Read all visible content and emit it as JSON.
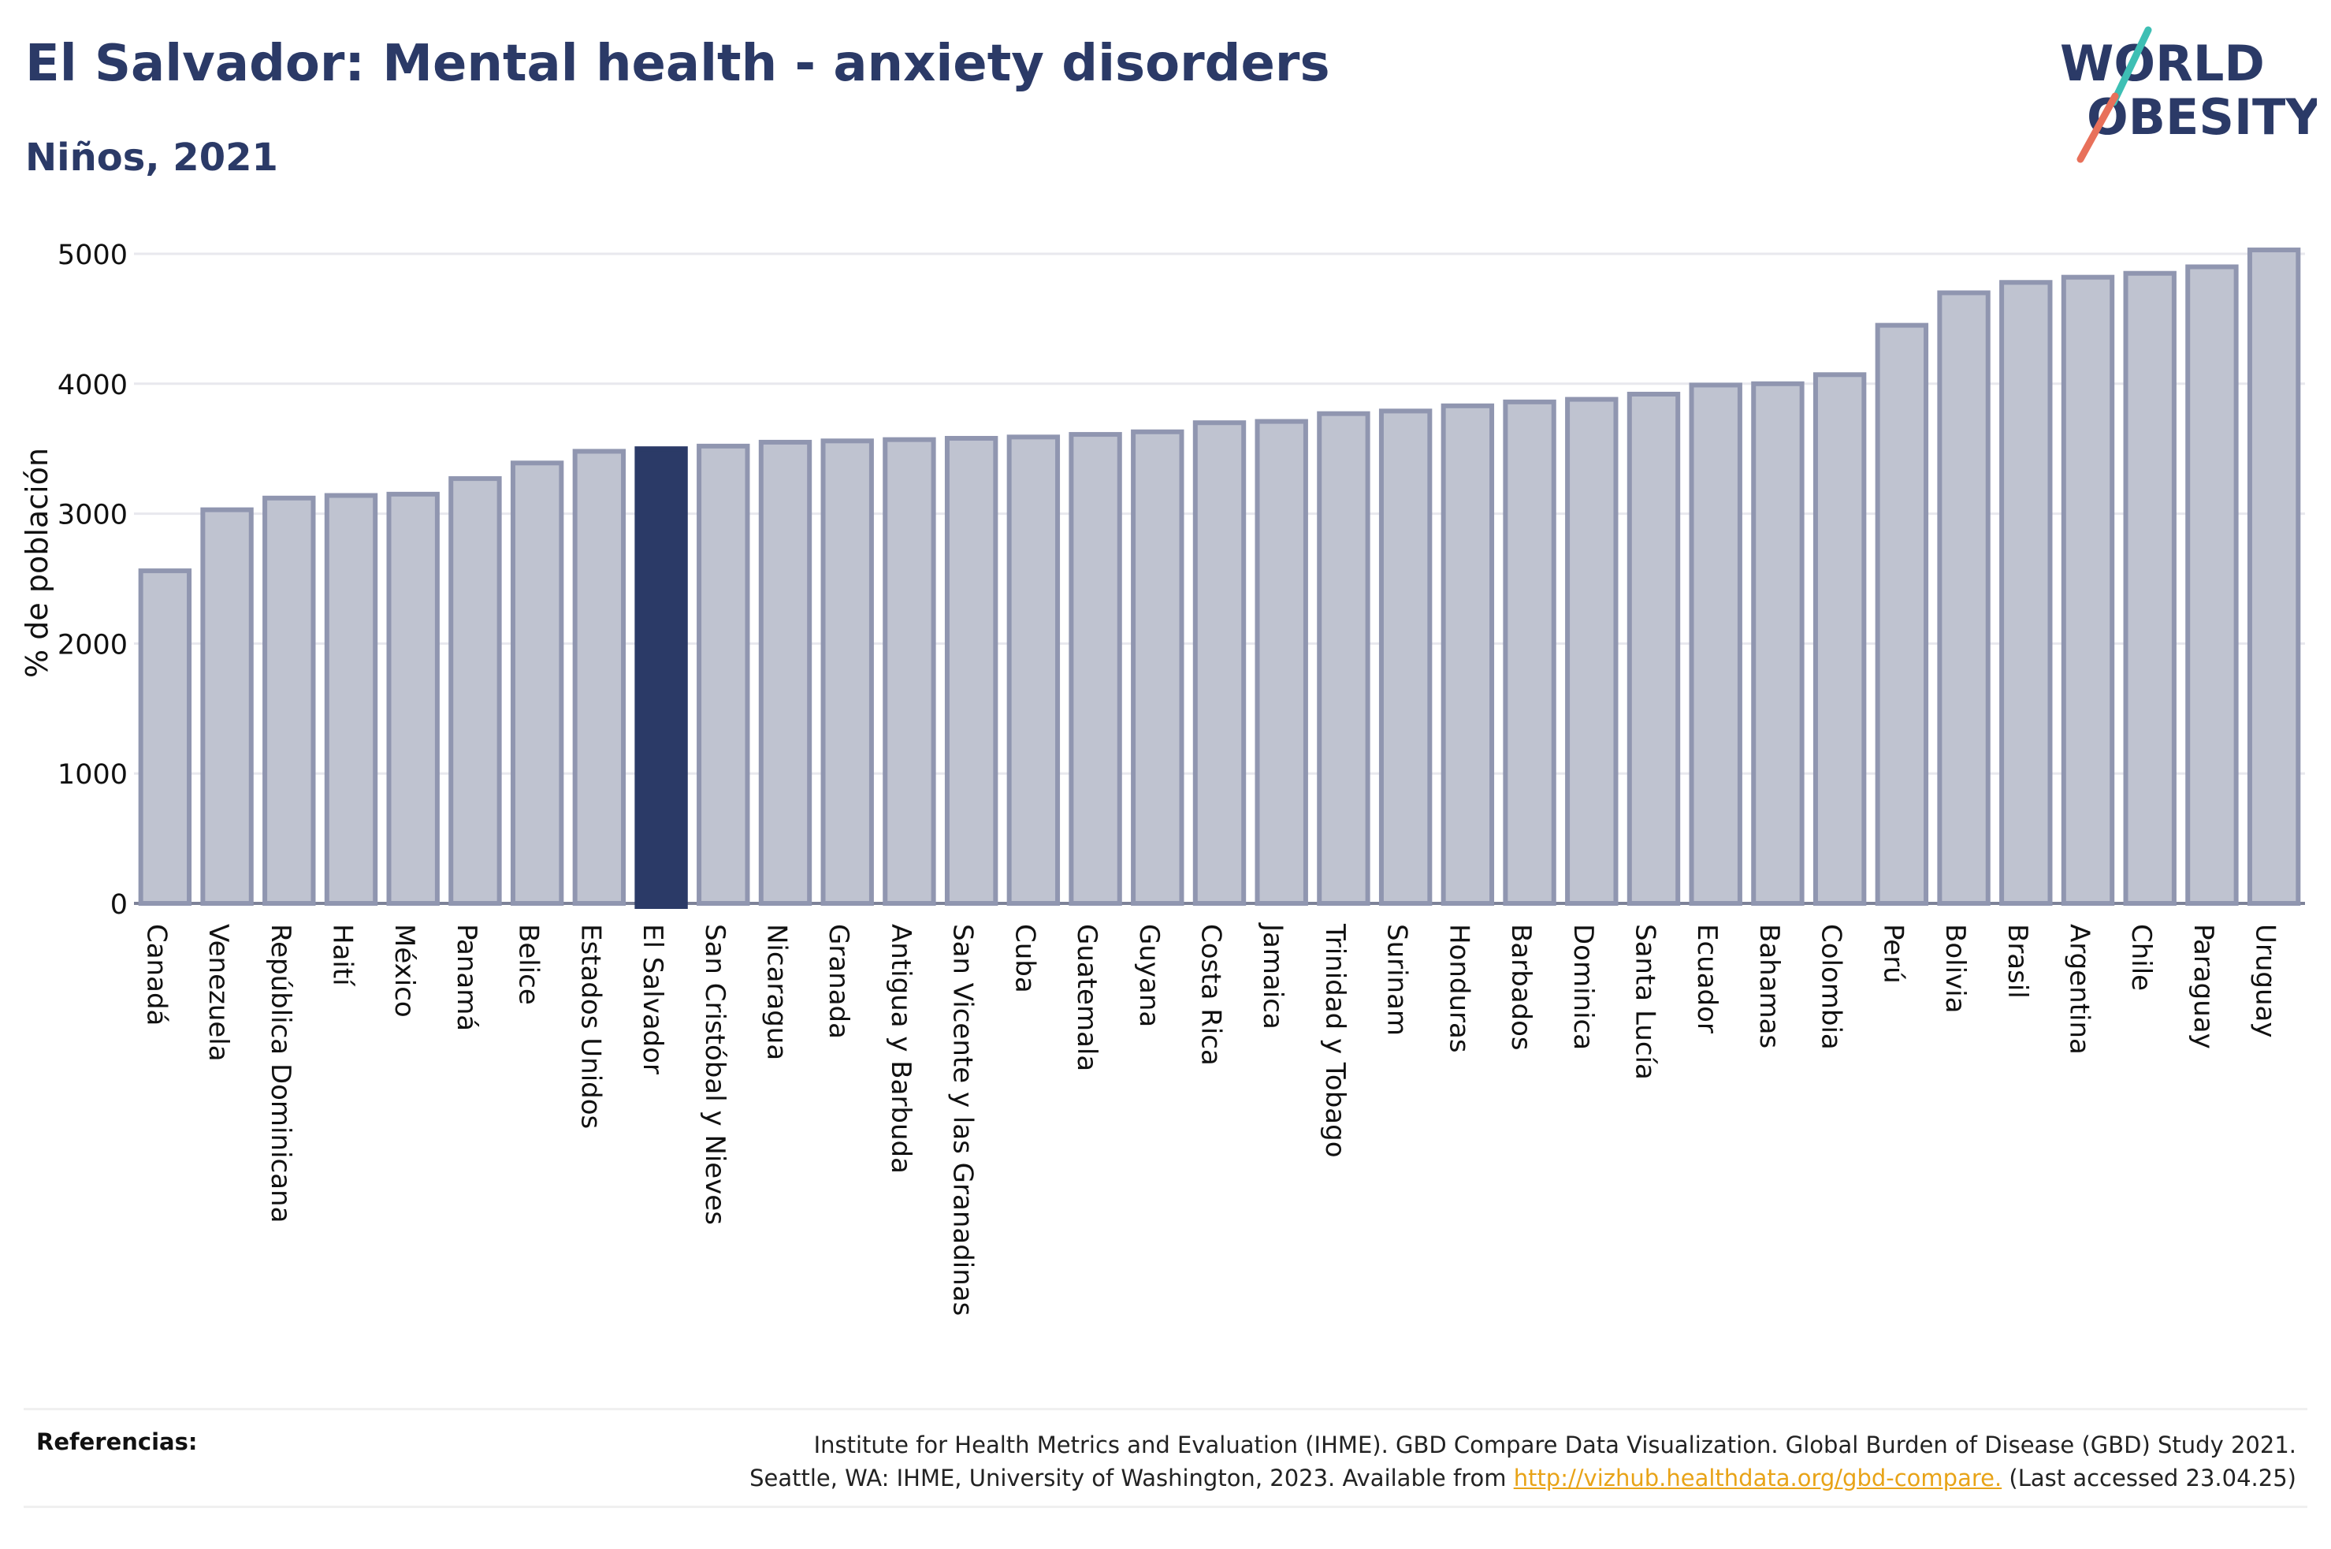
{
  "header": {
    "title": "El Salvador: Mental health - anxiety disorders",
    "subtitle": "Niños, 2021"
  },
  "logo": {
    "line1": "WORLD",
    "line2": "OBESITY",
    "brand_color": "#2b3a67",
    "slash_colors": [
      "#3ebfb4",
      "#e8705a"
    ]
  },
  "colors": {
    "bar": "#bfc3d0",
    "bar_stroke": "#9096b0",
    "highlight": "#2b3a67",
    "gridline": "#e8e8ee",
    "link": "#e8a317"
  },
  "chart_data": {
    "type": "bar",
    "ylabel": "% de población",
    "ylim": [
      0,
      5000
    ],
    "yticks": [
      0,
      1000,
      2000,
      3000,
      4000,
      5000
    ],
    "grid": true,
    "highlight": "El Salvador",
    "categories": [
      "Canadá",
      "Venezuela",
      "República Dominicana",
      "Haití",
      "México",
      "Panamá",
      "Belice",
      "Estados Unidos",
      "El Salvador",
      "San Cristóbal y Nieves",
      "Nicaragua",
      "Granada",
      "Antigua y Barbuda",
      "San Vicente y las Granadinas",
      "Cuba",
      "Guatemala",
      "Guyana",
      "Costa Rica",
      "Jamaica",
      "Trinidad y Tobago",
      "Surinam",
      "Honduras",
      "Barbados",
      "Dominica",
      "Santa Lucía",
      "Ecuador",
      "Bahamas",
      "Colombia",
      "Perú",
      "Bolivia",
      "Brasil",
      "Argentina",
      "Chile",
      "Paraguay",
      "Uruguay"
    ],
    "values": [
      2560,
      3030,
      3120,
      3140,
      3150,
      3270,
      3390,
      3480,
      3500,
      3520,
      3550,
      3560,
      3570,
      3580,
      3590,
      3610,
      3630,
      3700,
      3710,
      3770,
      3790,
      3830,
      3860,
      3880,
      3920,
      3990,
      4000,
      4070,
      4450,
      4700,
      4780,
      4820,
      4850,
      4900,
      5030
    ]
  },
  "footer": {
    "references_label": "Referencias:",
    "reference_line1": "Institute for Health Metrics and Evaluation (IHME). GBD Compare Data Visualization. Global Burden of Disease (GBD) Study 2021.",
    "reference_line2_prefix": "Seattle, WA: IHME, University of Washington, 2023. Available from",
    "reference_link": "http://vizhub.healthdata.org/gbd-compare.",
    "reference_line2_suffix": "(Last accessed 23.04.25)"
  }
}
